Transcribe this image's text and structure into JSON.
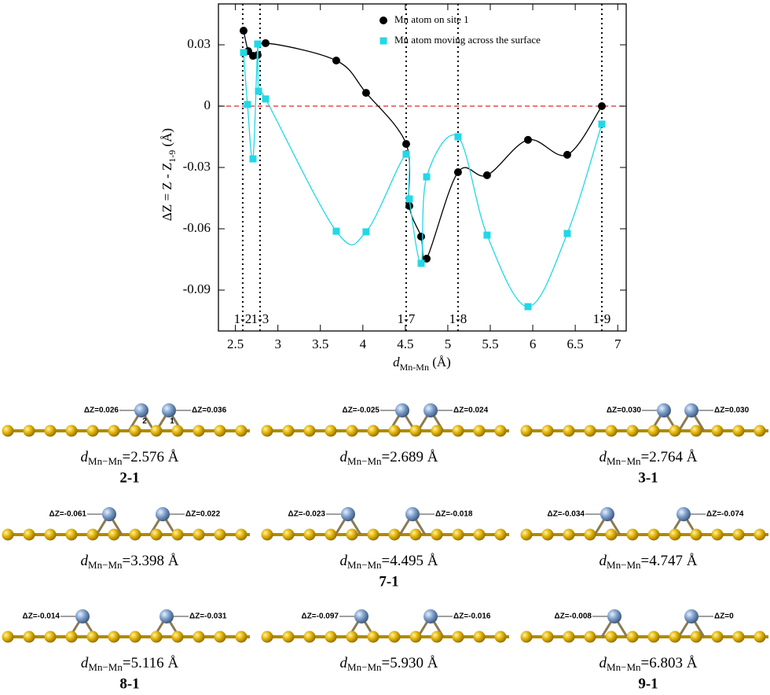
{
  "chart_data": {
    "type": "line",
    "xlabel": "d",
    "xlabel_sub": "Mn-Mn",
    "xlabel_unit": " (Å)",
    "ylabel": "ΔZ = Z - Z",
    "ylabel_sub": "1-9",
    "ylabel_unit": " (Å)",
    "xlim": [
      2.3,
      7.1
    ],
    "ylim": [
      -0.11,
      0.05
    ],
    "xticks": [
      2.5,
      3,
      3.5,
      4,
      4.5,
      5,
      5.5,
      6,
      6.5,
      7
    ],
    "yticks": [
      -0.09,
      -0.06,
      -0.03,
      0,
      0.03
    ],
    "reference_line": {
      "value": 0,
      "color": "#e8242a"
    },
    "markers": [
      {
        "x": 2.586,
        "label": "1-2"
      },
      {
        "x": 2.79,
        "label": "1-3"
      },
      {
        "x": 4.51,
        "label": "1-7"
      },
      {
        "x": 5.12,
        "label": "1-8"
      },
      {
        "x": 6.813,
        "label": "1-9"
      }
    ],
    "legend": "upper right",
    "series": [
      {
        "name": "Mn atom on site 1",
        "color": "#000000",
        "marker": "circle",
        "x": [
          2.596,
          2.651,
          2.707,
          2.762,
          2.855,
          3.687,
          4.038,
          4.51,
          4.547,
          4.686,
          4.751,
          5.12,
          5.462,
          5.944,
          6.406,
          6.813
        ],
        "values": [
          0.0369,
          0.0269,
          0.0246,
          0.025,
          0.0308,
          0.0223,
          0.0065,
          -0.0185,
          -0.0488,
          -0.0638,
          -0.0746,
          -0.0323,
          -0.0338,
          -0.0165,
          -0.0238,
          0
        ]
      },
      {
        "name": "Mn atom moving across the surface",
        "color": "#22d8e6",
        "marker": "square",
        "x": [
          2.596,
          2.642,
          2.707,
          2.762,
          2.772,
          2.855,
          3.687,
          4.038,
          4.51,
          4.547,
          4.686,
          4.751,
          5.12,
          5.462,
          5.944,
          6.406,
          6.813
        ],
        "values": [
          0.0262,
          0.0008,
          -0.0258,
          0.0304,
          0.0073,
          0.0035,
          -0.0612,
          -0.0615,
          -0.0235,
          -0.0454,
          -0.0769,
          -0.0346,
          -0.015,
          -0.0631,
          -0.0981,
          -0.0623,
          -0.0088
        ]
      }
    ]
  },
  "panels": {
    "distance_symbol": "d",
    "distance_sub": "Mn−Mn",
    "items": [
      {
        "left_dz": "ΔZ=0.026",
        "right_dz": "ΔZ=0.036",
        "distance": "=2.576 Å",
        "label": "2-1",
        "atom_labels": [
          "2",
          "1"
        ]
      },
      {
        "left_dz": "ΔZ=-0.025",
        "right_dz": "ΔZ=0.024",
        "distance": "=2.689 Å"
      },
      {
        "left_dz": "ΔZ=0.030",
        "right_dz": "ΔZ=0.030",
        "distance": "=2.764 Å",
        "label": "3-1"
      },
      {
        "left_dz": "ΔZ=-0.061",
        "right_dz": "ΔZ=0.022",
        "distance": "=3.398 Å"
      },
      {
        "left_dz": "ΔZ=-0.023",
        "right_dz": "ΔZ=-0.018",
        "distance": "=4.495 Å",
        "label": "7-1"
      },
      {
        "left_dz": "ΔZ=-0.034",
        "right_dz": "ΔZ=-0.074",
        "distance": "=4.747 Å"
      },
      {
        "left_dz": "ΔZ=-0.014",
        "right_dz": "ΔZ=-0.031",
        "distance": "=5.116 Å",
        "label": "8-1"
      },
      {
        "left_dz": "ΔZ=-0.097",
        "right_dz": "ΔZ=-0.016",
        "distance": "=5.930 Å"
      },
      {
        "left_dz": "ΔZ=-0.008",
        "right_dz": "ΔZ=0",
        "distance": "=6.803 Å",
        "label": "9-1"
      }
    ]
  }
}
